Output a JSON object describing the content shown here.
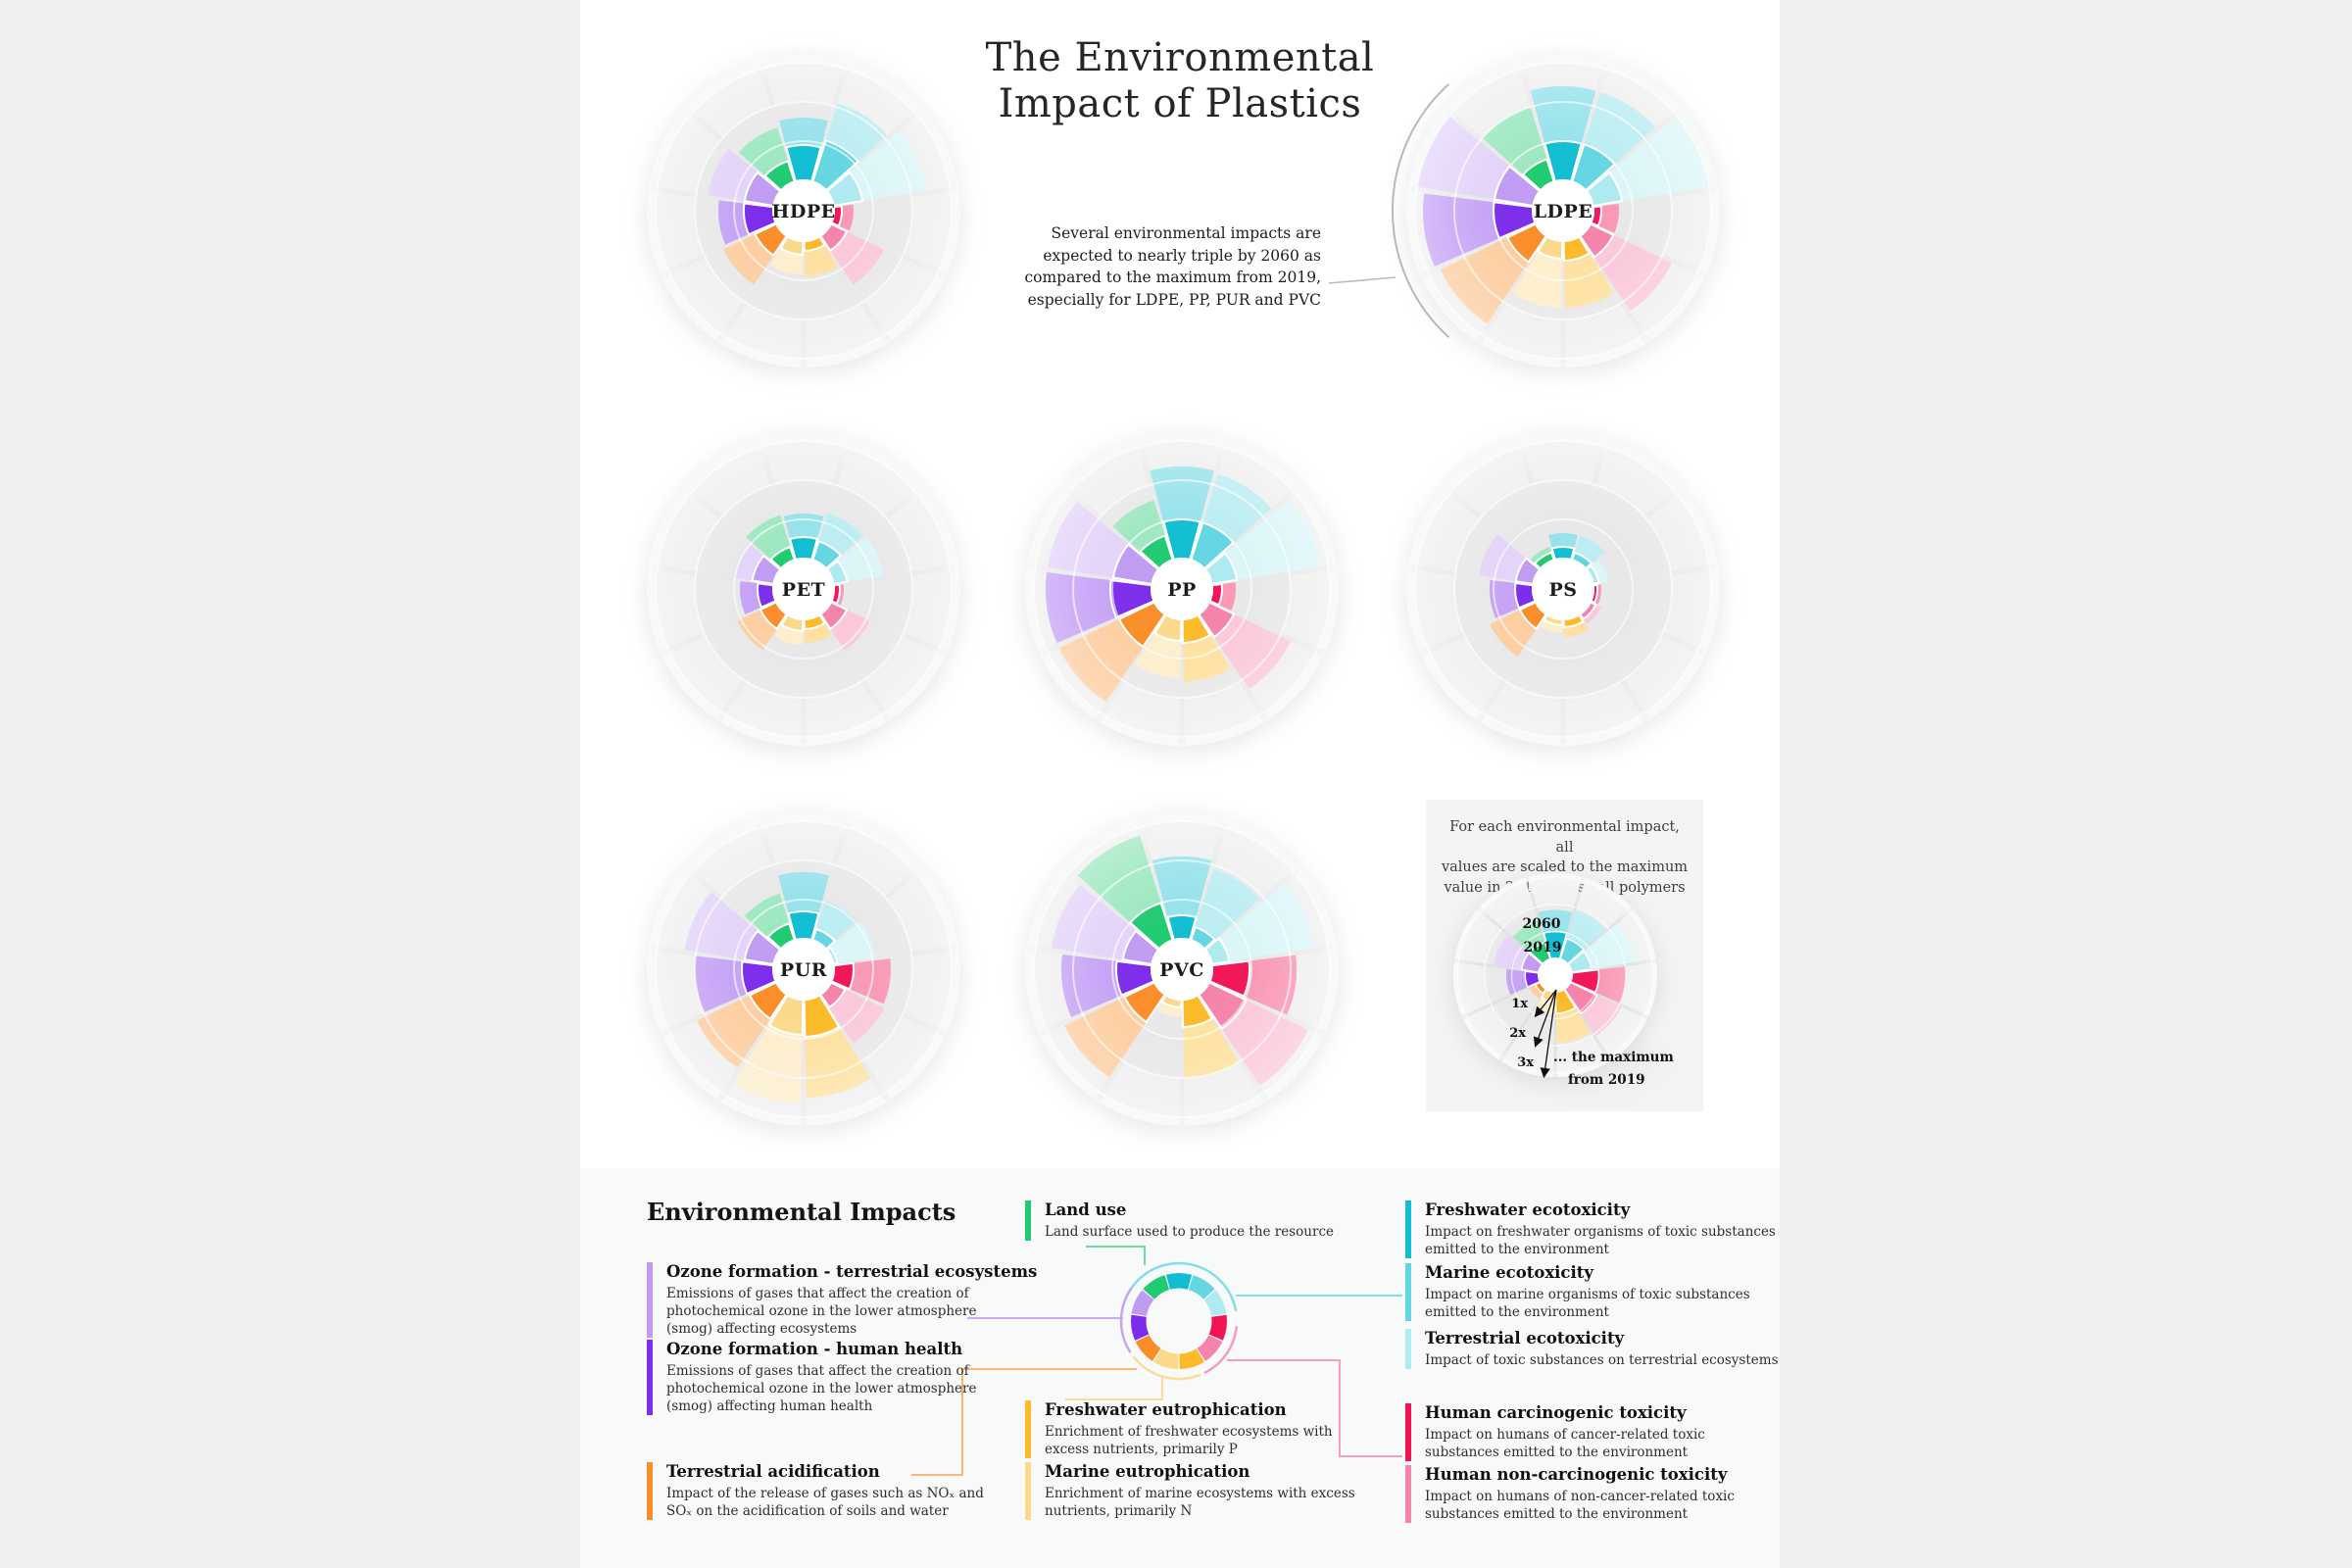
{
  "page": {
    "title_line1": "The Environmental",
    "title_line2": "Impact of Plastics",
    "annotation_lines": [
      "Several environmental impacts are",
      "expected to nearly triple by 2060 as",
      "compared to the maximum from 2019,",
      "especially for LDPE, PP, PUR and PVC"
    ]
  },
  "explainer": {
    "text_lines": [
      "For each environmental impact, all",
      "values are scaled to the maximum",
      "value in 2019 across all polymers"
    ],
    "label_2060": "2060",
    "label_2019": "2019",
    "ticks": [
      "1x",
      "2x",
      "3x"
    ],
    "note_line1": "... the maximum",
    "note_line2": "from 2019"
  },
  "legend": {
    "heading": "Environmental Impacts"
  },
  "chart_data": {
    "type": "radial-bar",
    "description": "Eleven environmental impact categories per polymer; two rings per category (inner saturated = 2019, outer light = 2060); values scaled so 1x equals the maximum 2019 value across all polymers; gray guide rings at 1x, 2x and 3x.",
    "series": [
      "2019",
      "2060"
    ],
    "rings": [
      "1x",
      "2x",
      "3x"
    ],
    "impacts": [
      {
        "id": "fw_ecotox",
        "label": "Freshwater ecotoxicity",
        "color": "#10bdd2",
        "desc": "Impact on freshwater organisms of toxic substances emitted to the environment"
      },
      {
        "id": "marine_ecotox",
        "label": "Marine ecotoxicity",
        "color": "#63d6e2",
        "desc": "Impact on marine organisms of toxic substances emitted to the environment"
      },
      {
        "id": "terr_ecotox",
        "label": "Terrestrial ecotoxicity",
        "color": "#aeeaf0",
        "desc": "Impact of toxic substances on terrestrial ecosystems"
      },
      {
        "id": "human_carc",
        "label": "Human carcinogenic toxicity",
        "color": "#f11556",
        "desc": "Impact on humans of cancer-related toxic substances emitted to the environment"
      },
      {
        "id": "human_ncarc",
        "label": "Human non-carcinogenic toxicity",
        "color": "#f583ab",
        "desc": "Impact on humans of non-cancer-related toxic substances emitted to the environment"
      },
      {
        "id": "fw_eutroph",
        "label": "Freshwater eutrophication",
        "color": "#fcba29",
        "desc": "Enrichment of freshwater ecosystems with excess nutrients, primarily P"
      },
      {
        "id": "marine_eutroph",
        "label": "Marine eutrophication",
        "color": "#fbd98b",
        "desc": "Enrichment of marine ecosystems with excess nutrients, primarily N"
      },
      {
        "id": "terr_acid",
        "label": "Terrestrial acidification",
        "color": "#fa8d28",
        "desc": "Impact of the release of gases such as NOₓ and SOₓ on the acidification of soils and water"
      },
      {
        "id": "ozone_human",
        "label": "Ozone formation - human health",
        "color": "#7c2ceb",
        "desc": "Emissions of gases that affect the creation of photochemical ozone in the lower atmosphere (smog) affecting human health"
      },
      {
        "id": "ozone_terr",
        "label": "Ozone formation - terrestrial ecosystems",
        "color": "#bf9bf2",
        "desc": "Emissions of gases that affect the creation of photochemical ozone in the lower atmosphere (smog) affecting ecosystems"
      },
      {
        "id": "land_use",
        "label": "Land use",
        "color": "#20ca70",
        "desc": "Land surface used to produce the resource"
      }
    ],
    "polymers": [
      {
        "name": "HDPE",
        "values": [
          [
            0.9,
            1.6
          ],
          [
            1.1,
            2.1
          ],
          [
            0.75,
            2.4
          ],
          [
            0.2,
            0.5
          ],
          [
            0.45,
            1.5
          ],
          [
            0.25,
            0.9
          ],
          [
            0.35,
            0.85
          ],
          [
            0.6,
            1.5
          ],
          [
            0.75,
            1.4
          ],
          [
            0.75,
            1.7
          ],
          [
            0.55,
            1.45
          ]
        ]
      },
      {
        "name": "LDPE",
        "values": [
          [
            1.0,
            2.4
          ],
          [
            1.0,
            2.4
          ],
          [
            0.75,
            3.0
          ],
          [
            0.2,
            0.65
          ],
          [
            0.65,
            2.3
          ],
          [
            0.5,
            1.7
          ],
          [
            0.45,
            1.7
          ],
          [
            0.8,
            2.7
          ],
          [
            1.0,
            2.8
          ],
          [
            1.0,
            3.0
          ],
          [
            0.6,
            2.0
          ]
        ]
      },
      {
        "name": "PET",
        "values": [
          [
            0.55,
            1.15
          ],
          [
            0.5,
            1.25
          ],
          [
            0.35,
            1.3
          ],
          [
            0.15,
            0.25
          ],
          [
            0.45,
            1.1
          ],
          [
            0.25,
            0.6
          ],
          [
            0.3,
            0.65
          ],
          [
            0.45,
            1.1
          ],
          [
            0.4,
            0.85
          ],
          [
            0.55,
            1.0
          ],
          [
            0.35,
            1.2
          ]
        ]
      },
      {
        "name": "PP",
        "values": [
          [
            1.0,
            2.35
          ],
          [
            1.0,
            2.3
          ],
          [
            0.65,
            2.8
          ],
          [
            0.25,
            0.6
          ],
          [
            0.7,
            2.3
          ],
          [
            0.6,
            1.6
          ],
          [
            0.55,
            1.5
          ],
          [
            1.0,
            2.7
          ],
          [
            1.05,
            2.7
          ],
          [
            1.0,
            2.7
          ],
          [
            0.65,
            1.6
          ]
        ]
      },
      {
        "name": "PS",
        "values": [
          [
            0.3,
            0.65
          ],
          [
            0.2,
            0.65
          ],
          [
            0.15,
            0.4
          ],
          [
            0.1,
            0.2
          ],
          [
            0.15,
            0.3
          ],
          [
            0.2,
            0.45
          ],
          [
            0.15,
            0.35
          ],
          [
            0.45,
            1.3
          ],
          [
            0.45,
            1.1
          ],
          [
            0.45,
            1.4
          ],
          [
            0.2,
            0.35
          ]
        ]
      },
      {
        "name": "PUR",
        "values": [
          [
            0.7,
            1.7
          ],
          [
            0.3,
            1.05
          ],
          [
            0.1,
            1.1
          ],
          [
            0.5,
            1.45
          ],
          [
            0.4,
            1.5
          ],
          [
            0.95,
            2.5
          ],
          [
            0.9,
            2.65
          ],
          [
            0.75,
            2.25
          ],
          [
            0.8,
            2.0
          ],
          [
            0.75,
            2.3
          ],
          [
            0.45,
            1.25
          ]
        ]
      },
      {
        "name": "PVC",
        "values": [
          [
            0.6,
            2.1
          ],
          [
            0.35,
            1.9
          ],
          [
            0.45,
            2.65
          ],
          [
            0.95,
            2.15
          ],
          [
            1.05,
            2.8
          ],
          [
            0.7,
            2.0
          ],
          [
            0.2,
            0.45
          ],
          [
            0.85,
            2.55
          ],
          [
            0.9,
            2.3
          ],
          [
            0.75,
            2.6
          ],
          [
            1.0,
            2.8
          ]
        ]
      }
    ],
    "sample_chart": {
      "name": "",
      "values": [
        [
          1.0,
          1.8
        ],
        [
          0.8,
          1.9
        ],
        [
          0.75,
          2.4
        ],
        [
          1.0,
          2.0
        ],
        [
          1.1,
          2.1
        ],
        [
          0.8,
          1.9
        ],
        [
          0.35,
          0.8
        ],
        [
          0.2,
          0.45
        ],
        [
          0.5,
          1.2
        ],
        [
          0.65,
          1.7
        ],
        [
          0.65,
          1.5
        ]
      ]
    }
  }
}
